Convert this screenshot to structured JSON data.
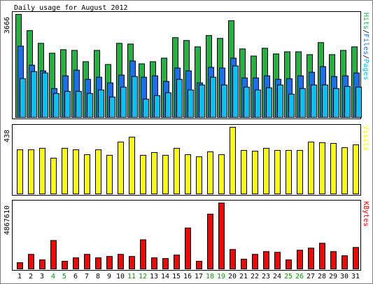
{
  "chart_data": [
    {
      "type": "bar",
      "title": "Daily usage for August 2012",
      "ylim": [
        0,
        3666
      ],
      "yticks": [
        3666
      ],
      "legend_separator": "/",
      "series": [
        {
          "name": "Pages",
          "color": "#00c0ff",
          "values": [
            1381,
            1632,
            1582,
            854,
            929,
            929,
            854,
            979,
            728,
            1080,
            1456,
            653,
            778,
            879,
            1356,
            979,
            1155,
            1431,
            1155,
            1833,
            1080,
            979,
            1055,
            1155,
            829,
            1029,
            1155,
            1155,
            1029,
            1105,
            1080
          ]
        },
        {
          "name": "Files",
          "color": "#1e6ee6",
          "values": [
            2536,
            1858,
            1657,
            1029,
            1481,
            1682,
            1356,
            1431,
            1230,
            1507,
            2009,
            1431,
            1481,
            1281,
            1758,
            1657,
            1230,
            1783,
            1758,
            2109,
            1406,
            1406,
            1481,
            1356,
            1381,
            1481,
            1607,
            1808,
            1456,
            1481,
            1582
          ]
        },
        {
          "name": "Hits",
          "color": "#1eb446",
          "values": [
            3666,
            3088,
            2636,
            2285,
            2411,
            2385,
            1984,
            2385,
            1883,
            2636,
            2611,
            1908,
            1984,
            2109,
            2837,
            2737,
            2511,
            2913,
            2812,
            3440,
            2436,
            2184,
            2461,
            2260,
            2335,
            2335,
            2235,
            2662,
            2235,
            2385,
            2511
          ]
        }
      ]
    },
    {
      "type": "bar",
      "ylim": [
        0,
        438
      ],
      "yticks": [
        438
      ],
      "series": [
        {
          "name": "Visits",
          "color": "#ffff00",
          "values": [
            290,
            290,
            300,
            235,
            300,
            290,
            258,
            290,
            254,
            341,
            373,
            254,
            272,
            254,
            300,
            258,
            244,
            277,
            258,
            438,
            286,
            281,
            300,
            286,
            286,
            286,
            341,
            337,
            332,
            304,
            323
          ]
        }
      ]
    },
    {
      "type": "bar",
      "ylim": [
        0,
        4867610
      ],
      "yticks": [
        4867610
      ],
      "categories": [
        "1",
        "2",
        "3",
        "4",
        "5",
        "6",
        "7",
        "8",
        "9",
        "10",
        "11",
        "12",
        "13",
        "14",
        "15",
        "16",
        "17",
        "18",
        "19",
        "20",
        "21",
        "22",
        "23",
        "24",
        "25",
        "26",
        "27",
        "28",
        "29",
        "30",
        "31"
      ],
      "category_colors": [
        "#000000",
        "#000000",
        "#000000",
        "#00a000",
        "#00a000",
        "#000000",
        "#000000",
        "#000000",
        "#000000",
        "#000000",
        "#00a000",
        "#00a000",
        "#000000",
        "#000000",
        "#000000",
        "#000000",
        "#000000",
        "#00a000",
        "#00a000",
        "#000000",
        "#000000",
        "#000000",
        "#000000",
        "#000000",
        "#00a000",
        "#00a000",
        "#000000",
        "#000000",
        "#000000",
        "#000000",
        "#000000"
      ],
      "series": [
        {
          "name": "KBytes",
          "color": "#ff0000",
          "values": [
            461142,
            1076000,
            666000,
            2100700,
            563600,
            819800,
            1076000,
            819800,
            922300,
            1076000,
            922300,
            2152000,
            819800,
            768600,
            1024800,
            3023000,
            563600,
            4047800,
            4867610,
            1434700,
            717300,
            1076000,
            1281000,
            1229700,
            666000,
            1383400,
            1537100,
            1895800,
            1281000,
            973500,
            1588400
          ]
        }
      ]
    }
  ]
}
